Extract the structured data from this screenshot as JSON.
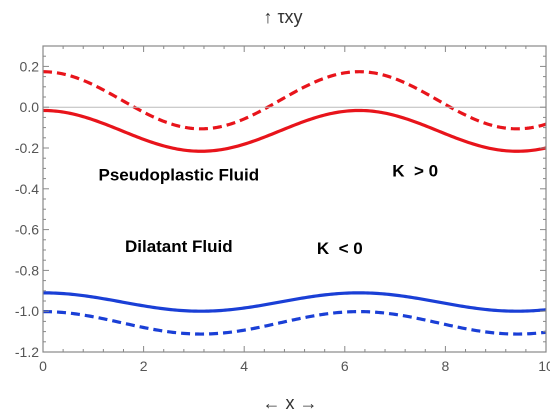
{
  "chart_data": {
    "type": "line",
    "title": "",
    "ylabel": "↑ τxy",
    "xlabel": "← x →",
    "xlim": [
      0,
      10
    ],
    "ylim": [
      -1.2,
      0.3
    ],
    "x_ticks": [
      0,
      2,
      4,
      6,
      8,
      10
    ],
    "y_ticks": [
      0.2,
      0.0,
      -0.2,
      -0.4,
      -0.6,
      -0.8,
      -1.0,
      -1.2
    ],
    "y_tick_labels": [
      "0.2",
      "0.0",
      "-0.2",
      "-0.4",
      "-0.6",
      "-0.8",
      "-1.0",
      "-1.2"
    ],
    "reference_line_y": 0.0,
    "grid": false,
    "annotations": [
      {
        "text": "Pseudoplastic Fluid",
        "x": 2.7,
        "y": -0.36
      },
      {
        "text": "K  > 0",
        "x": 7.4,
        "y": -0.34
      },
      {
        "text": "Dilatant Fluid",
        "x": 2.7,
        "y": -0.71
      },
      {
        "text": "K  < 0",
        "x": 5.9,
        "y": -0.72
      }
    ],
    "series": [
      {
        "color": "#e8141b",
        "dash": "solid",
        "mean": -0.116,
        "amplitude": 0.1,
        "period": 6.283,
        "phase": 0
      },
      {
        "color": "#e8141b",
        "dash": "dashed",
        "mean": 0.034,
        "amplitude": 0.14,
        "period": 6.283,
        "phase": 0
      },
      {
        "color": "#1a3fd6",
        "dash": "solid",
        "mean": -0.955,
        "amplitude": 0.045,
        "period": 6.283,
        "phase": 0
      },
      {
        "color": "#1a3fd6",
        "dash": "dashed",
        "mean": -1.057,
        "amplitude": 0.055,
        "period": 6.283,
        "phase": 0
      }
    ]
  }
}
